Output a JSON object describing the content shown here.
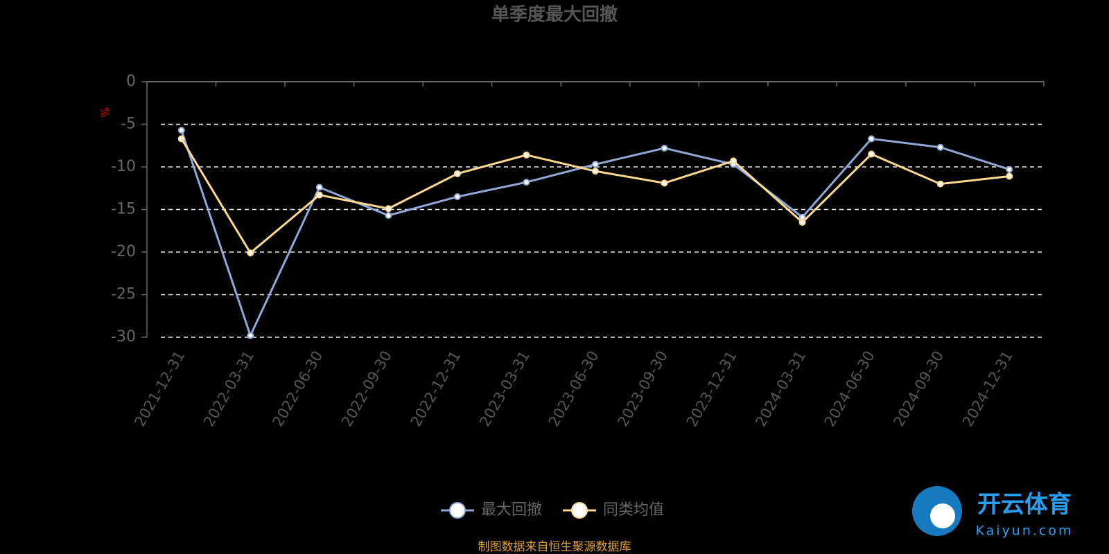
{
  "chart_data": {
    "type": "line",
    "title": "单季度最大回撤",
    "y_label": "%",
    "categories": [
      "2021-12-31",
      "2022-03-31",
      "2022-06-30",
      "2022-09-30",
      "2022-12-31",
      "2023-03-31",
      "2023-06-30",
      "2023-09-30",
      "2023-12-31",
      "2024-03-31",
      "2024-06-30",
      "2024-09-30",
      "2024-12-31"
    ],
    "series": [
      {
        "name": "最大回撤",
        "color": "#8fa8d8",
        "values": [
          -5.7,
          -29.8,
          -12.4,
          -15.7,
          -13.5,
          -11.8,
          -9.7,
          -7.8,
          -9.7,
          -15.9,
          -6.7,
          -7.7,
          -10.3
        ]
      },
      {
        "name": "同类均值",
        "color": "#ffd98e",
        "values": [
          -6.7,
          -20.1,
          -13.3,
          -14.9,
          -10.8,
          -8.6,
          -10.5,
          -11.9,
          -9.3,
          -16.5,
          -8.5,
          -12.0,
          -11.1
        ]
      }
    ],
    "ylim": [
      -30,
      0
    ],
    "yticks": [
      0,
      -5,
      -10,
      -15,
      -20,
      -25,
      -30
    ],
    "grid": true,
    "source_note": "制图数据来自恒生聚源数据库"
  },
  "watermark": {
    "brand": "开云体育",
    "site": "Kaiyun.com"
  }
}
